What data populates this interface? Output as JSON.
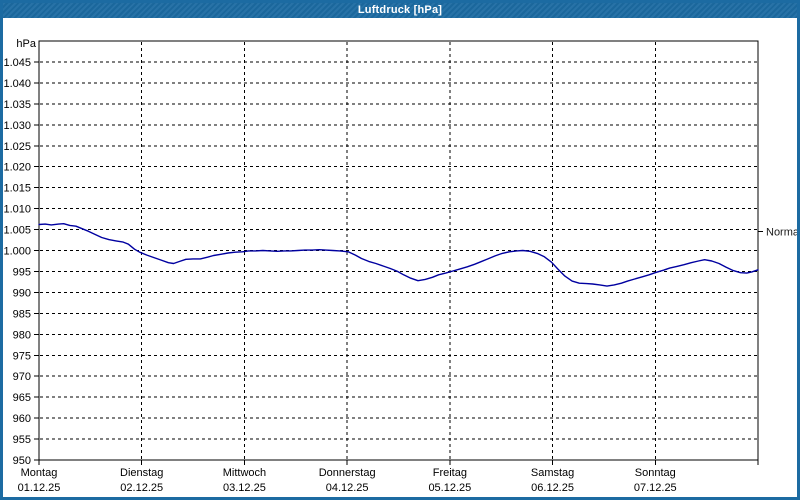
{
  "window": {
    "title": "Luftdruck [hPa]",
    "title_bar_color": "#1c6ba2",
    "border_color": "#1c6ba2",
    "background": "#ffffff"
  },
  "chart_data": {
    "type": "line",
    "title": "Luftdruck [hPa]",
    "xlabel": "",
    "ylabel": "hPa",
    "y_unit_label": "hPa",
    "ylim": [
      950,
      1050
    ],
    "ytick_step": 5,
    "grid": "dashed",
    "legend": "none",
    "line_color": "#0000a0",
    "yticks": [
      {
        "value": 1045,
        "label": "1.045"
      },
      {
        "value": 1040,
        "label": "1.040"
      },
      {
        "value": 1035,
        "label": "1.035"
      },
      {
        "value": 1030,
        "label": "1.030"
      },
      {
        "value": 1025,
        "label": "1.025"
      },
      {
        "value": 1020,
        "label": "1.020"
      },
      {
        "value": 1015,
        "label": "1.015"
      },
      {
        "value": 1010,
        "label": "1.010"
      },
      {
        "value": 1005,
        "label": "1.005"
      },
      {
        "value": 1000,
        "label": "1.000"
      },
      {
        "value": 995,
        "label": "995"
      },
      {
        "value": 990,
        "label": "990"
      },
      {
        "value": 985,
        "label": "985"
      },
      {
        "value": 980,
        "label": "980"
      },
      {
        "value": 975,
        "label": "975"
      },
      {
        "value": 970,
        "label": "970"
      },
      {
        "value": 965,
        "label": "965"
      },
      {
        "value": 960,
        "label": "960"
      },
      {
        "value": 955,
        "label": "955"
      },
      {
        "value": 950,
        "label": "950"
      }
    ],
    "days": [
      {
        "label": "Montag",
        "date": "01.12.25"
      },
      {
        "label": "Dienstag",
        "date": "02.12.25"
      },
      {
        "label": "Mittwoch",
        "date": "03.12.25"
      },
      {
        "label": "Donnerstag",
        "date": "04.12.25"
      },
      {
        "label": "Freitag",
        "date": "05.12.25"
      },
      {
        "label": "Samstag",
        "date": "06.12.25"
      },
      {
        "label": "Sonntag",
        "date": "07.12.25"
      }
    ],
    "normal_marker": {
      "label": "Normal",
      "value": 1004.5
    },
    "series": [
      {
        "name": "Luftdruck",
        "unit": "hPa",
        "points": [
          [
            0.0,
            1006.2
          ],
          [
            0.06,
            1006.3
          ],
          [
            0.12,
            1006.1
          ],
          [
            0.19,
            1006.3
          ],
          [
            0.24,
            1006.4
          ],
          [
            0.3,
            1006.0
          ],
          [
            0.36,
            1005.8
          ],
          [
            0.42,
            1005.2
          ],
          [
            0.48,
            1004.6
          ],
          [
            0.55,
            1003.8
          ],
          [
            0.61,
            1003.1
          ],
          [
            0.68,
            1002.6
          ],
          [
            0.75,
            1002.3
          ],
          [
            0.82,
            1002.0
          ],
          [
            0.87,
            1001.5
          ],
          [
            0.93,
            1000.3
          ],
          [
            0.98,
            999.6
          ],
          [
            1.05,
            998.9
          ],
          [
            1.12,
            998.3
          ],
          [
            1.19,
            997.7
          ],
          [
            1.26,
            997.1
          ],
          [
            1.31,
            996.9
          ],
          [
            1.37,
            997.4
          ],
          [
            1.43,
            997.9
          ],
          [
            1.5,
            998.0
          ],
          [
            1.57,
            998.0
          ],
          [
            1.64,
            998.4
          ],
          [
            1.7,
            998.8
          ],
          [
            1.77,
            999.1
          ],
          [
            1.84,
            999.4
          ],
          [
            1.91,
            999.6
          ],
          [
            1.98,
            999.7
          ],
          [
            2.04,
            999.9
          ],
          [
            2.11,
            999.9
          ],
          [
            2.18,
            1000.0
          ],
          [
            2.25,
            999.9
          ],
          [
            2.32,
            999.8
          ],
          [
            2.39,
            999.9
          ],
          [
            2.45,
            999.9
          ],
          [
            2.52,
            1000.0
          ],
          [
            2.59,
            1000.1
          ],
          [
            2.66,
            1000.1
          ],
          [
            2.73,
            1000.2
          ],
          [
            2.79,
            1000.1
          ],
          [
            2.86,
            1000.0
          ],
          [
            2.93,
            999.9
          ],
          [
            3.01,
            999.7
          ],
          [
            3.08,
            998.9
          ],
          [
            3.14,
            998.1
          ],
          [
            3.21,
            997.4
          ],
          [
            3.28,
            996.9
          ],
          [
            3.35,
            996.3
          ],
          [
            3.42,
            995.7
          ],
          [
            3.49,
            995.0
          ],
          [
            3.55,
            994.2
          ],
          [
            3.62,
            993.4
          ],
          [
            3.69,
            992.8
          ],
          [
            3.76,
            993.1
          ],
          [
            3.83,
            993.6
          ],
          [
            3.89,
            994.2
          ],
          [
            3.96,
            994.6
          ],
          [
            4.03,
            995.1
          ],
          [
            4.1,
            995.6
          ],
          [
            4.17,
            996.1
          ],
          [
            4.24,
            996.7
          ],
          [
            4.3,
            997.3
          ],
          [
            4.37,
            998.0
          ],
          [
            4.44,
            998.7
          ],
          [
            4.51,
            999.3
          ],
          [
            4.58,
            999.7
          ],
          [
            4.65,
            999.9
          ],
          [
            4.71,
            1000.0
          ],
          [
            4.78,
            999.8
          ],
          [
            4.85,
            999.3
          ],
          [
            4.92,
            998.5
          ],
          [
            4.99,
            997.2
          ],
          [
            5.05,
            995.6
          ],
          [
            5.12,
            993.9
          ],
          [
            5.19,
            992.7
          ],
          [
            5.26,
            992.2
          ],
          [
            5.33,
            992.1
          ],
          [
            5.39,
            992.0
          ],
          [
            5.46,
            991.8
          ],
          [
            5.53,
            991.5
          ],
          [
            5.6,
            991.8
          ],
          [
            5.67,
            992.2
          ],
          [
            5.73,
            992.7
          ],
          [
            5.8,
            993.2
          ],
          [
            5.87,
            993.7
          ],
          [
            5.94,
            994.2
          ],
          [
            6.01,
            994.8
          ],
          [
            6.08,
            995.3
          ],
          [
            6.14,
            995.8
          ],
          [
            6.21,
            996.2
          ],
          [
            6.28,
            996.6
          ],
          [
            6.35,
            997.1
          ],
          [
            6.42,
            997.5
          ],
          [
            6.48,
            997.8
          ],
          [
            6.55,
            997.5
          ],
          [
            6.62,
            996.9
          ],
          [
            6.69,
            996.0
          ],
          [
            6.76,
            995.2
          ],
          [
            6.83,
            994.7
          ],
          [
            6.89,
            994.6
          ],
          [
            6.94,
            994.9
          ],
          [
            7.0,
            995.4
          ]
        ]
      }
    ]
  }
}
